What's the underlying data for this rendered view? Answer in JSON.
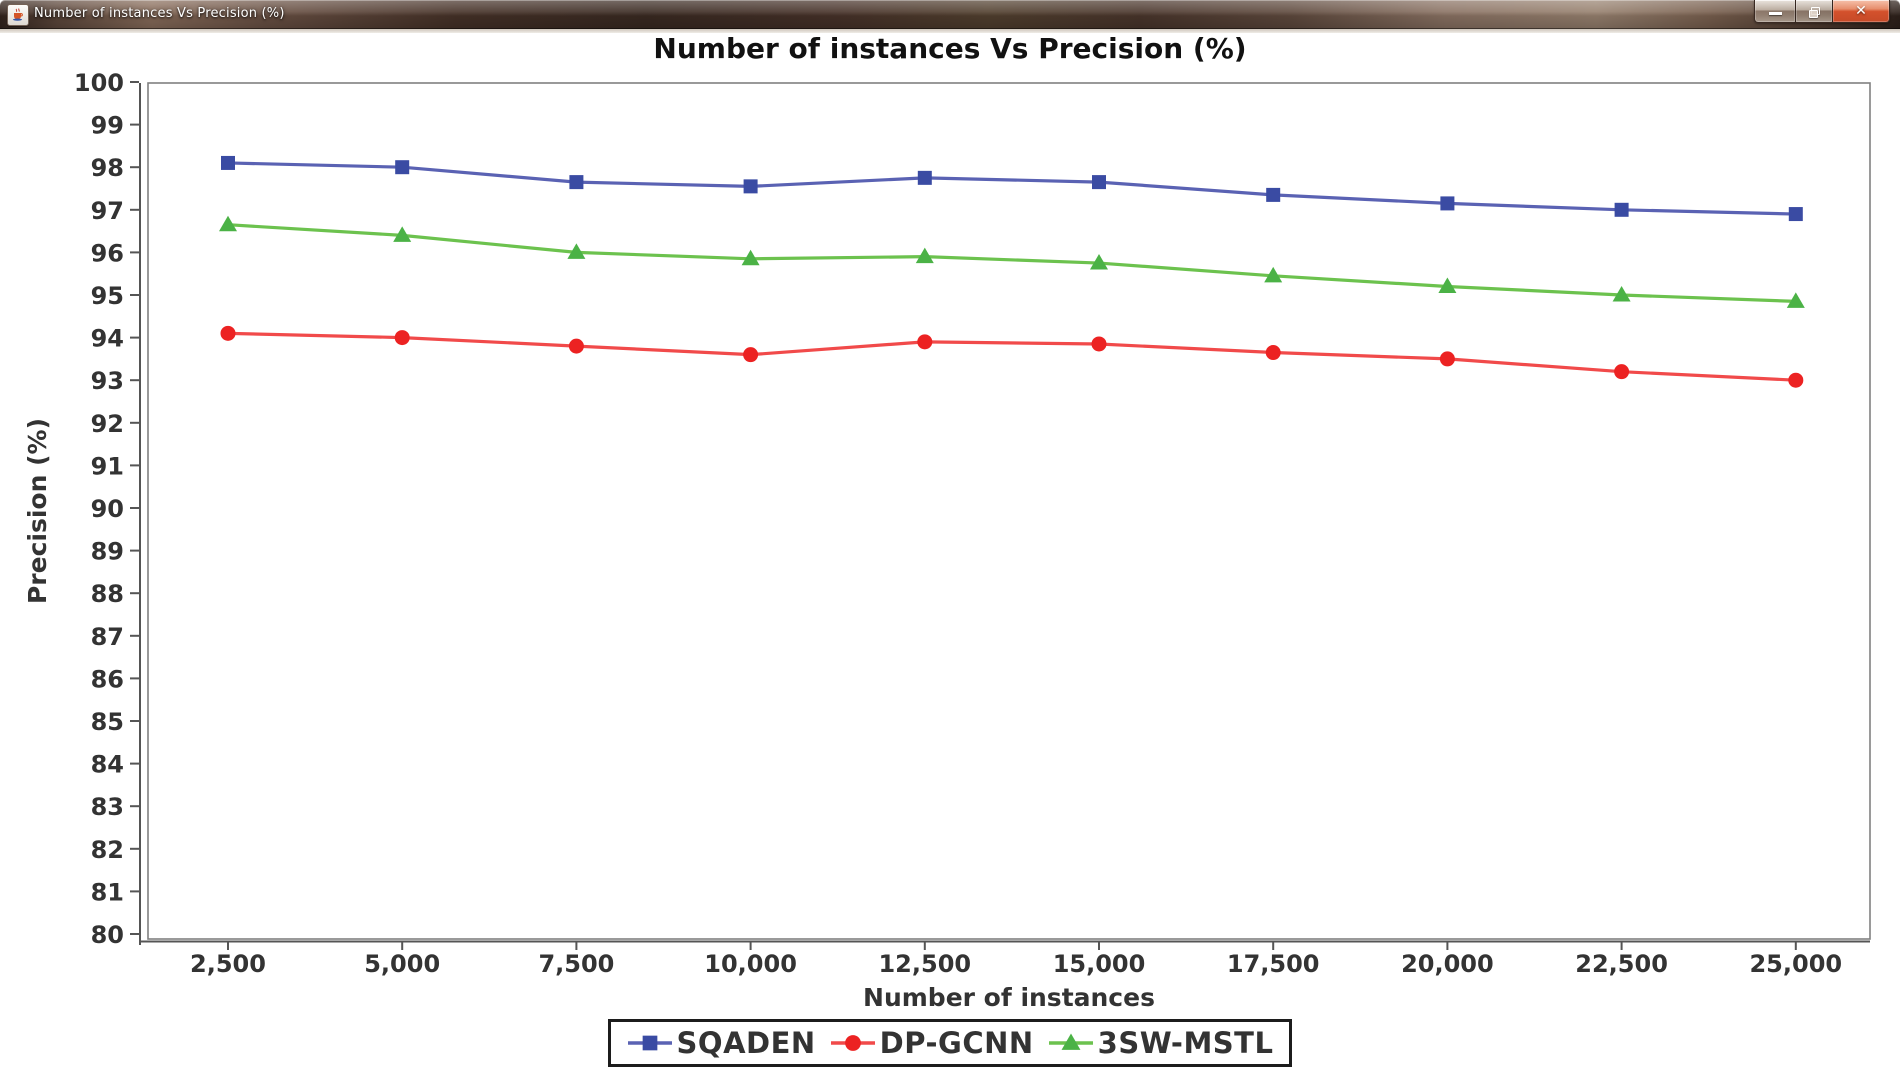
{
  "window": {
    "title": "Number of instances Vs Precision (%)",
    "icon": "java-coffee-cup",
    "controls": {
      "minimize_label": "minimize",
      "restore_label": "restore",
      "close_label": "close"
    }
  },
  "chart_data": {
    "type": "line",
    "title": "Number of instances Vs Precision (%)",
    "xlabel": "Number of instances",
    "ylabel": "Precision (%)",
    "x": [
      2500,
      5000,
      7500,
      10000,
      12500,
      15000,
      17500,
      20000,
      22500,
      25000
    ],
    "x_tick_labels": [
      "2,500",
      "5,000",
      "7,500",
      "10,000",
      "12,500",
      "15,000",
      "17,500",
      "20,000",
      "22,500",
      "25,000"
    ],
    "ylim": [
      80,
      100
    ],
    "y_tick_step": 1,
    "grid": false,
    "legend_position": "bottom",
    "colors": {
      "title_text": "#111111",
      "axis_text": "#333333",
      "axis_line": "#555555",
      "plot_border": "#808080"
    },
    "series": [
      {
        "name": "SQADEN",
        "marker": "square",
        "color": "#3a4ba3",
        "line_color": "#5a62b3",
        "values": [
          98.1,
          98.0,
          97.65,
          97.55,
          97.75,
          97.65,
          97.35,
          97.15,
          97.0,
          96.9
        ]
      },
      {
        "name": "DP-GCNN",
        "marker": "circle",
        "color": "#ec2222",
        "line_color": "#f14a4a",
        "values": [
          94.1,
          94.0,
          93.8,
          93.6,
          93.9,
          93.85,
          93.65,
          93.5,
          93.2,
          93.0
        ]
      },
      {
        "name": "3SW-MSTL",
        "marker": "triangle",
        "color": "#4bb246",
        "line_color": "#6cc24e",
        "values": [
          96.65,
          96.4,
          96.0,
          95.85,
          95.9,
          95.75,
          95.45,
          95.2,
          95.0,
          94.85
        ]
      }
    ]
  }
}
